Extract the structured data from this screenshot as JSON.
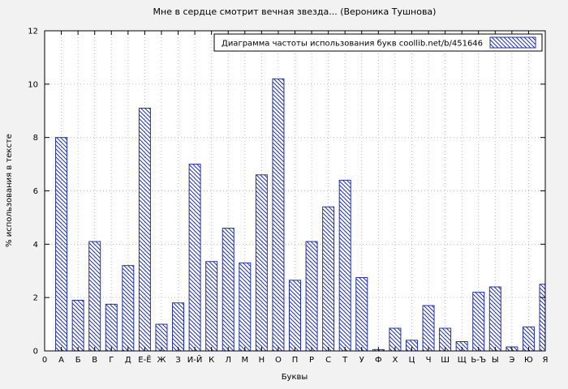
{
  "title": "Мне в сердце смотрит вечная звезда... (Вероника Тушнова)",
  "legend": {
    "label": "Диаграмма частоты использования букв  coollib.net/b/451646"
  },
  "axes": {
    "x_label": "Буквы",
    "y_label": "% использования в тексте",
    "origin_label": "0",
    "y_ticks": [
      0,
      2,
      4,
      6,
      8,
      10,
      12
    ]
  },
  "colors": {
    "bar": "#2233aa",
    "background": "#f2f2f2",
    "plot_background": "#ffffff",
    "grid": "#bdbdbd"
  },
  "chart_data": {
    "type": "bar",
    "title": "Мне в сердце смотрит вечная звезда... (Вероника Тушнова)",
    "legend": "Диаграмма частоты использования букв  coollib.net/b/451646",
    "xlabel": "Буквы",
    "ylabel": "% использования в тексте",
    "ylim": [
      0,
      12
    ],
    "grid": true,
    "legend_position": "top-right-inside",
    "categories": [
      "А",
      "Б",
      "В",
      "Г",
      "Д",
      "Е-Ё",
      "Ж",
      "З",
      "И-Й",
      "К",
      "Л",
      "М",
      "Н",
      "О",
      "П",
      "Р",
      "С",
      "Т",
      "У",
      "Ф",
      "Х",
      "Ц",
      "Ч",
      "Ш",
      "Щ",
      "Ь-Ъ",
      "Ы",
      "Э",
      "Ю",
      "Я"
    ],
    "values": [
      8.0,
      1.9,
      4.1,
      1.75,
      3.2,
      9.1,
      1.0,
      1.8,
      7.0,
      3.35,
      4.6,
      3.3,
      6.6,
      10.2,
      2.65,
      4.1,
      5.4,
      6.4,
      2.75,
      0.05,
      0.85,
      0.4,
      1.7,
      0.85,
      0.35,
      2.2,
      2.4,
      0.15,
      0.9,
      2.5
    ]
  }
}
